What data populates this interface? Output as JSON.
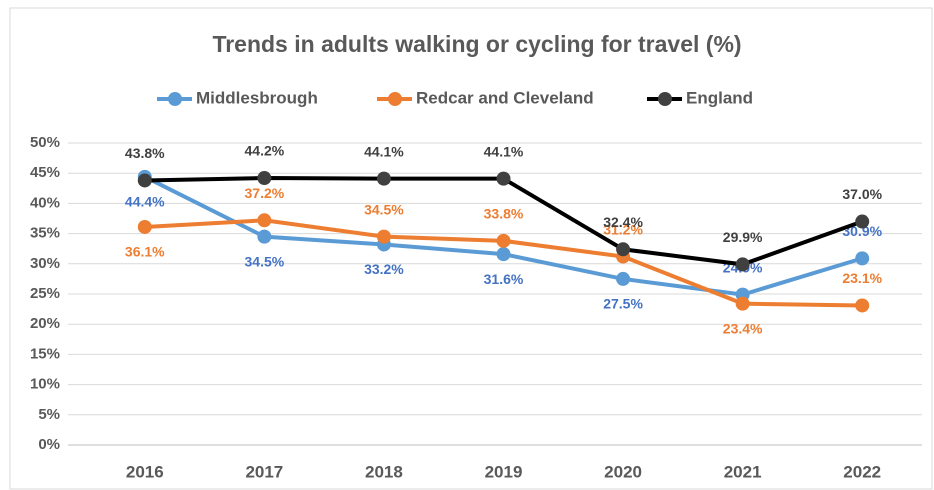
{
  "chart_data": {
    "type": "line",
    "title": "Trends in adults walking or cycling for travel (%)",
    "categories": [
      "2016",
      "2017",
      "2018",
      "2019",
      "2020",
      "2021",
      "2022"
    ],
    "series": [
      {
        "name": "Middlesbrough",
        "color": "#5b9bd5",
        "values": [
          44.4,
          34.5,
          33.2,
          31.6,
          27.5,
          24.9,
          30.9
        ],
        "value_labels": [
          "44.4%",
          "34.5%",
          "33.2%",
          "31.6%",
          "27.5%",
          "24.9%",
          "30.9%"
        ]
      },
      {
        "name": "Redcar and Cleveland",
        "color": "#ed7d31",
        "values": [
          36.1,
          37.2,
          34.5,
          33.8,
          31.2,
          23.4,
          23.1
        ],
        "value_labels": [
          "36.1%",
          "37.2%",
          "34.5%",
          "33.8%",
          "31.2%",
          "23.4%",
          "23.1%"
        ]
      },
      {
        "name": "England",
        "color": "#000000",
        "values": [
          43.8,
          44.2,
          44.1,
          44.1,
          32.4,
          29.9,
          37.0
        ],
        "value_labels": [
          "43.8%",
          "44.2%",
          "44.1%",
          "44.1%",
          "32.4%",
          "29.9%",
          "37.0%"
        ]
      }
    ],
    "ylim": [
      0,
      50
    ],
    "yticks": [
      {
        "value": 0,
        "label": "0%"
      },
      {
        "value": 5,
        "label": "5%"
      },
      {
        "value": 10,
        "label": "10%"
      },
      {
        "value": 15,
        "label": "15%"
      },
      {
        "value": 20,
        "label": "20%"
      },
      {
        "value": 25,
        "label": "25%"
      },
      {
        "value": 30,
        "label": "30%"
      },
      {
        "value": 35,
        "label": "35%"
      },
      {
        "value": 40,
        "label": "40%"
      },
      {
        "value": 45,
        "label": "45%"
      },
      {
        "value": 50,
        "label": "50%"
      }
    ],
    "grid": true,
    "legend": "top"
  }
}
